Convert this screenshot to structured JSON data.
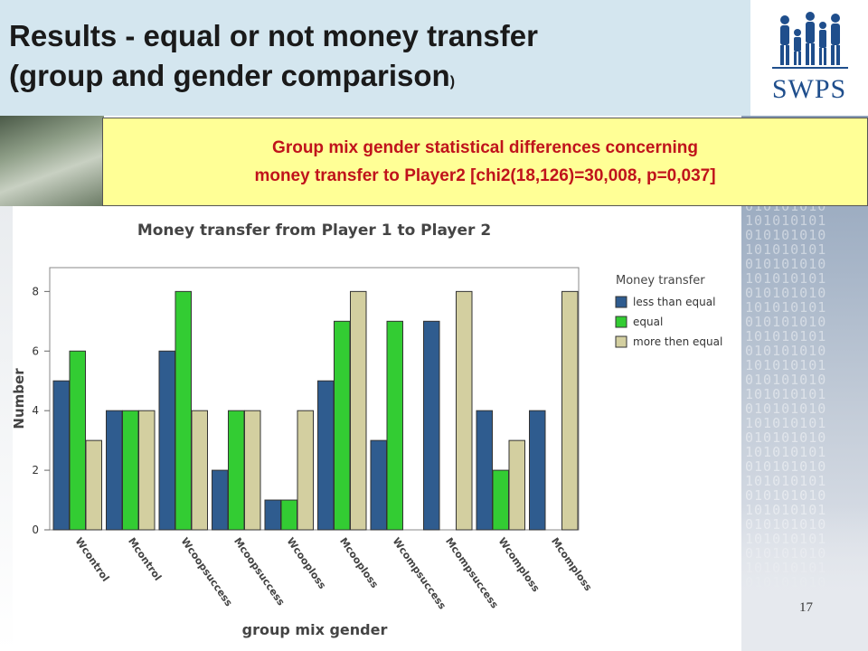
{
  "slide": {
    "title_line1": "Results - equal or not money transfer",
    "title_line2": "(group and gender comparison",
    "title_paren": ")",
    "logo_text": "SWPS",
    "banner_line1": "Group mix gender statistical differences concerning",
    "banner_line2": "money transfer to Player2 [chi2(18,126)=30,008, p=0,037]",
    "page_number": "17",
    "binary_pattern": "010101010\n101010101\n010101010\n101010101\n010101010\n101010101\n010101010\n101010101\n010101010\n101010101\n010101010\n101010101\n010101010\n101010101\n010101010\n101010101\n010101010\n101010101\n010101010\n101010101\n010101010\n101010101\n010101010\n101010101\n010101010\n101010101\n010101010\n101010101\n010101010"
  },
  "colors": {
    "header_bg": "#d4e6ef",
    "banner_bg": "#ffff96",
    "banner_text": "#c0131b",
    "logo": "#1f4e8c"
  },
  "chart_data": {
    "type": "bar",
    "title": "Money transfer from Player 1 to Player 2",
    "xlabel": "group mix gender",
    "ylabel": "Number",
    "ylim": [
      0,
      8.8
    ],
    "yticks": [
      0,
      2,
      4,
      6,
      8
    ],
    "grid": false,
    "legend_title": "Money transfer",
    "legend_position": "right",
    "categories": [
      "Wcontrol",
      "Mcontrol",
      "Wcoopsuccess",
      "Mcoopsuccess",
      "Wcooploss",
      "Mcooploss",
      "Wcompsuccess",
      "Mcompsuccess",
      "Wcomploss",
      "Mcomploss"
    ],
    "series": [
      {
        "name": "less than equal",
        "color": "#2f5c8f",
        "values": [
          5,
          4,
          6,
          2,
          1,
          5,
          3,
          7,
          4,
          4
        ]
      },
      {
        "name": "equal",
        "color": "#33cc33",
        "values": [
          6,
          4,
          8,
          4,
          1,
          7,
          7,
          0,
          2,
          0
        ]
      },
      {
        "name": "more then equal",
        "color": "#d3cfa0",
        "values": [
          3,
          4,
          4,
          4,
          4,
          8,
          0,
          8,
          3,
          8
        ]
      }
    ]
  }
}
